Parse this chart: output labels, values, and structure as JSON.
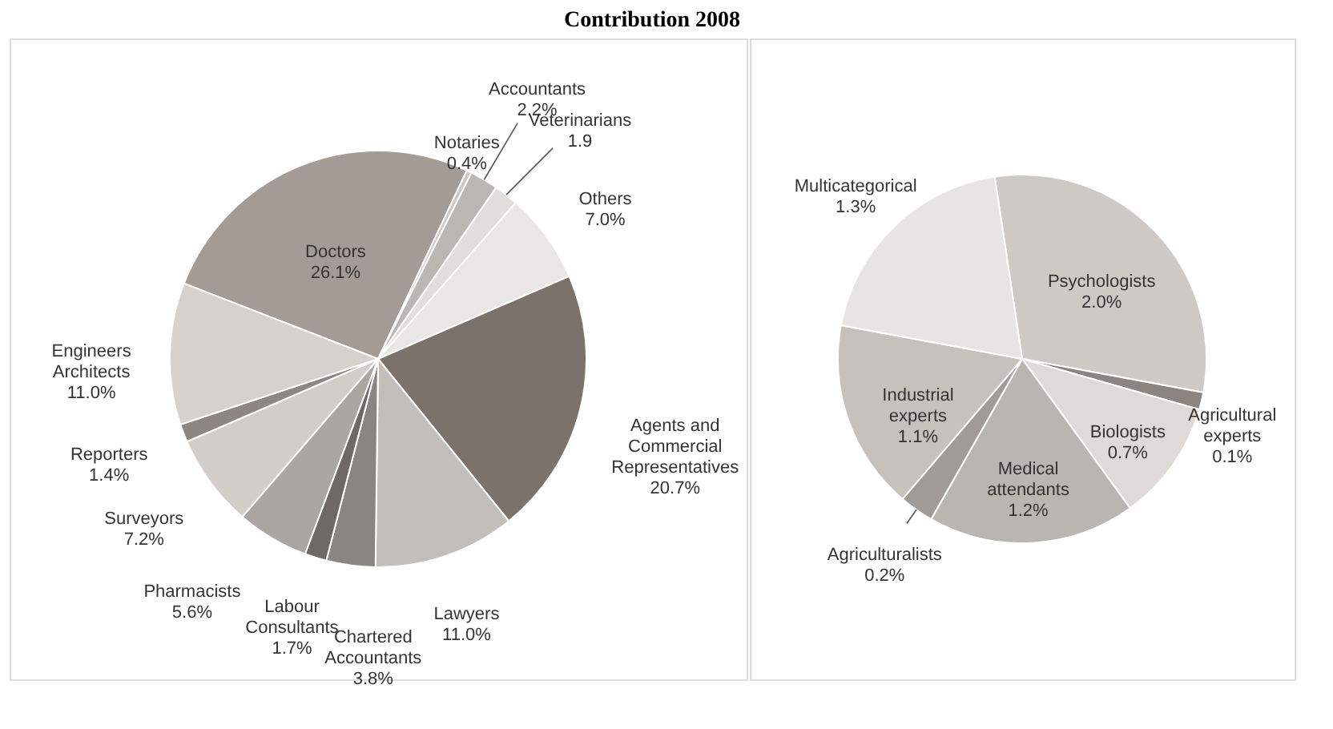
{
  "chart_data": [
    {
      "type": "pie",
      "title": "Contribution 2008",
      "categories": [
        "Doctors",
        "Notaries",
        "Accountants",
        "Veterinarians",
        "Others",
        "Agents and Commercial Representatives",
        "Lawyers",
        "Chartered Accountants",
        "Labour Consultants",
        "Pharmacists",
        "Surveyors",
        "Reporters",
        "Engineers Architects"
      ],
      "values": [
        26.1,
        0.4,
        2.2,
        1.9,
        7.0,
        20.7,
        11.0,
        3.8,
        1.7,
        5.6,
        7.2,
        1.4,
        11.0
      ],
      "value_labels": [
        "26.1%",
        "0.4%",
        "2.2%",
        "1.9",
        "7.0%",
        "20.7%",
        "11.0%",
        "3.8%",
        "1.7%",
        "5.6%",
        "7.2%",
        "1.4%",
        "11.0%"
      ],
      "colors": [
        "#a39b95",
        "#cbc7c3",
        "#bab6b2",
        "#e0ddda",
        "#e9e7e5",
        "#7b726c",
        "#c2beba",
        "#8b8581",
        "#6f6965",
        "#aaa6a2",
        "#d1cdc9",
        "#8d8783",
        "#d5d1cd"
      ]
    },
    {
      "type": "pie",
      "categories": [
        "Psychologists",
        "Agricultural experts",
        "Biologists",
        "Medical attendants",
        "Agriculturalists",
        "Industrial experts",
        "Multicategorical"
      ],
      "values": [
        2.0,
        0.1,
        0.7,
        1.2,
        0.2,
        1.1,
        1.3
      ],
      "value_labels": [
        "2.0%",
        "0.1%",
        "0.7%",
        "1.2%",
        "0.2%",
        "1.1%",
        "1.3%"
      ],
      "colors": [
        "#cdc9c5",
        "#8b8581",
        "#dddad7",
        "#b9b5b1",
        "#a19b97",
        "#c5c1bd",
        "#e7e5e3"
      ]
    }
  ]
}
